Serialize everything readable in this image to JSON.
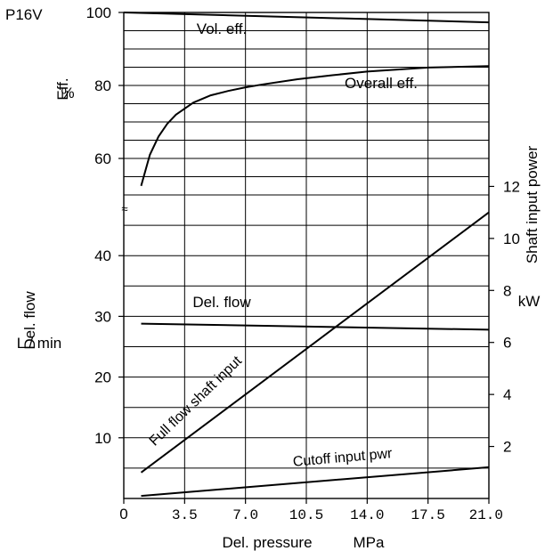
{
  "chart_data": {
    "type": "line",
    "model": "P16V",
    "title": "",
    "xlabel": "Del. pressure",
    "xunit": "MPa",
    "xlim": [
      0,
      21.0
    ],
    "x_ticks": [
      0,
      3.5,
      7.0,
      10.5,
      14.0,
      17.5,
      21.0
    ],
    "x_tick_labels": [
      "0",
      "3.5",
      "7.0",
      "10.5",
      "14.0",
      "17.5",
      "21.0"
    ],
    "eff_axis": {
      "label": "Eff.",
      "unit": "%",
      "range": [
        50,
        100
      ],
      "ticks": [
        60,
        80,
        100
      ],
      "tick_labels": [
        "60",
        "80",
        "100"
      ]
    },
    "flow_axis": {
      "label": "Del. flow",
      "unit": "L / min",
      "range": [
        0,
        50
      ],
      "ticks": [
        10,
        20,
        30,
        40
      ],
      "tick_labels": [
        "10",
        "20",
        "30",
        "40"
      ]
    },
    "power_axis": {
      "label": "Shaft input power",
      "unit": "kW",
      "range": [
        0,
        14
      ],
      "ticks": [
        2,
        4,
        6,
        8,
        10,
        12
      ],
      "tick_labels": [
        "2",
        "4",
        "6",
        "8",
        "10",
        "12"
      ]
    },
    "break_mark": "≈",
    "series": [
      {
        "name": "Vol. eff.",
        "axis": "eff",
        "x": [
          0,
          21.0
        ],
        "y": [
          100,
          97.3
        ]
      },
      {
        "name": "Overall eff.",
        "axis": "eff",
        "x": [
          1.0,
          1.5,
          2.0,
          2.5,
          3.0,
          4.0,
          5.0,
          6.0,
          7.0,
          8.0,
          10.0,
          12.0,
          14.0,
          17.5,
          21.0
        ],
        "y": [
          52.5,
          61.0,
          66.0,
          69.5,
          72.0,
          75.3,
          77.3,
          78.5,
          79.5,
          80.3,
          81.7,
          82.8,
          83.8,
          84.9,
          85.3
        ]
      },
      {
        "name": "Del. flow",
        "axis": "flow",
        "x": [
          1.0,
          21.0
        ],
        "y": [
          28.8,
          27.8
        ]
      },
      {
        "name": "Full flow shaft input",
        "axis": "power",
        "x": [
          1.0,
          21.0
        ],
        "y": [
          1.0,
          11.0
        ]
      },
      {
        "name": "Cutoff input pwr",
        "axis": "power",
        "x": [
          1.0,
          21.0
        ],
        "y": [
          0.1,
          1.2
        ]
      }
    ],
    "grid": true
  }
}
